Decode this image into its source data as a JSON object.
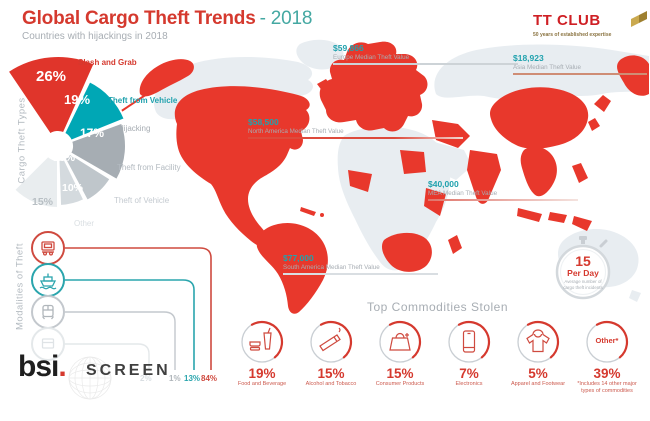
{
  "header": {
    "title": "Global Cargo Theft Trends",
    "year": "- 2018",
    "subtitle": "Countries with hijackings in 2018"
  },
  "tt_club": {
    "name": "TT CLUB",
    "tagline": "50 years of established expertise"
  },
  "bsi": {
    "logo": "bsi",
    "logo_dot": ".",
    "product": "SCREEN"
  },
  "colors": {
    "brand-red": "#d5392e",
    "teal": "#21a2ae",
    "teal-title": "#44a8a2",
    "gray-text": "#a7adb3",
    "map-red": "#e8382c",
    "map-land": "#e8edf1",
    "mod-truck": "#cf4a3f",
    "mod-ship": "#2aa5ad",
    "mod-rail": "#c3c8cd",
    "mod-other": "#e4e8ea"
  },
  "chart_data": [
    {
      "id": "cargo_theft_types",
      "type": "pie",
      "title": "Cargo Theft Types",
      "segments": [
        {
          "label": "Slash and Grab",
          "pct": "26%",
          "value": 26,
          "color": "#e0352b"
        },
        {
          "label": "Theft from Vehicle",
          "pct": "19%",
          "value": 19,
          "color": "#00a7b5"
        },
        {
          "label": "Hijacking",
          "pct": "17%",
          "value": 17,
          "color": "#a6adb3"
        },
        {
          "label": "Theft from Facility",
          "pct": "13%",
          "value": 13,
          "color": "#bfc6cb"
        },
        {
          "label": "Theft of Vehicle",
          "pct": "10%",
          "value": 10,
          "color": "#d4dade"
        },
        {
          "label": "Other",
          "pct": "15%",
          "value": 15,
          "color": "#e9edef"
        }
      ]
    },
    {
      "id": "modalities_of_theft",
      "type": "bar",
      "title": "Modalities of Theft",
      "bars": [
        {
          "mode": "truck",
          "pct": "84%",
          "value": 84,
          "color": "#cf4a3f"
        },
        {
          "mode": "ship",
          "pct": "13%",
          "value": 13,
          "color": "#2aa5ad"
        },
        {
          "mode": "rail",
          "pct": "1%",
          "value": 1,
          "color": "#c3c8cd"
        },
        {
          "mode": "other",
          "pct": "2%",
          "value": 2,
          "color": "#e4e8ea"
        }
      ]
    },
    {
      "id": "top_commodities_stolen",
      "type": "icon-list",
      "title": "Top Commodities Stolen",
      "items": [
        {
          "label": "Food and Beverage",
          "pct": "19%",
          "value": 19
        },
        {
          "label": "Alcohol and Tobacco",
          "pct": "15%",
          "value": 15
        },
        {
          "label": "Consumer Products",
          "pct": "15%",
          "value": 15
        },
        {
          "label": "Electronics",
          "pct": "7%",
          "value": 7
        },
        {
          "label": "Apparel and Footwear",
          "pct": "5%",
          "value": 5
        },
        {
          "label": "*Includes 14 other major types of commodities",
          "pct": "39%",
          "value": 39,
          "circle_text": "Other*"
        }
      ]
    },
    {
      "id": "median_theft_values",
      "type": "map",
      "values": [
        {
          "value": "$59,866",
          "region": "Europe Median Theft Value"
        },
        {
          "value": "$18,923",
          "region": "Asia Median Theft Value"
        },
        {
          "value": "$58,500",
          "region": "North America Median Theft Value"
        },
        {
          "value": "$40,000",
          "region": "MEA Median Theft Value"
        },
        {
          "value": "$77,000",
          "region": "South America Median Theft Value"
        }
      ]
    },
    {
      "id": "incident_rate",
      "type": "stat",
      "value": "15",
      "unit": "Per Day",
      "note": "Average number of cargo theft incidents"
    }
  ]
}
